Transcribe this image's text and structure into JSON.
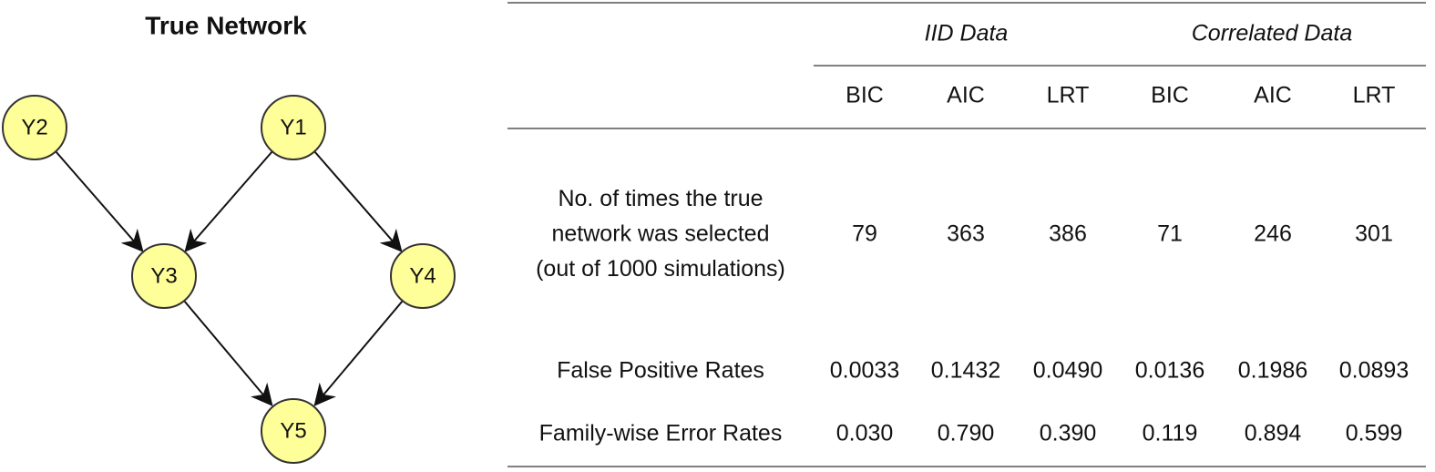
{
  "diagram": {
    "title": "True Network",
    "nodes": [
      {
        "label": "Y2"
      },
      {
        "label": "Y1"
      },
      {
        "label": "Y3"
      },
      {
        "label": "Y4"
      },
      {
        "label": "Y5"
      }
    ]
  },
  "table": {
    "groups": [
      "IID Data",
      "Correlated Data"
    ],
    "columns": [
      "BIC",
      "AIC",
      "LRT",
      "BIC",
      "AIC",
      "LRT"
    ],
    "rows": [
      {
        "label": [
          "No. of times the true",
          "network was selected",
          "(out of 1000 simulations)"
        ],
        "cells": [
          "79",
          "363",
          "386",
          "71",
          "246",
          "301"
        ]
      },
      {
        "label": [
          "False Positive Rates"
        ],
        "cells": [
          "0.0033",
          "0.1432",
          "0.0490",
          "0.0136",
          "0.1986",
          "0.0893"
        ]
      },
      {
        "label": [
          "Family-wise Error Rates"
        ],
        "cells": [
          "0.030",
          "0.790",
          "0.390",
          "0.119",
          "0.894",
          "0.599"
        ]
      }
    ]
  }
}
